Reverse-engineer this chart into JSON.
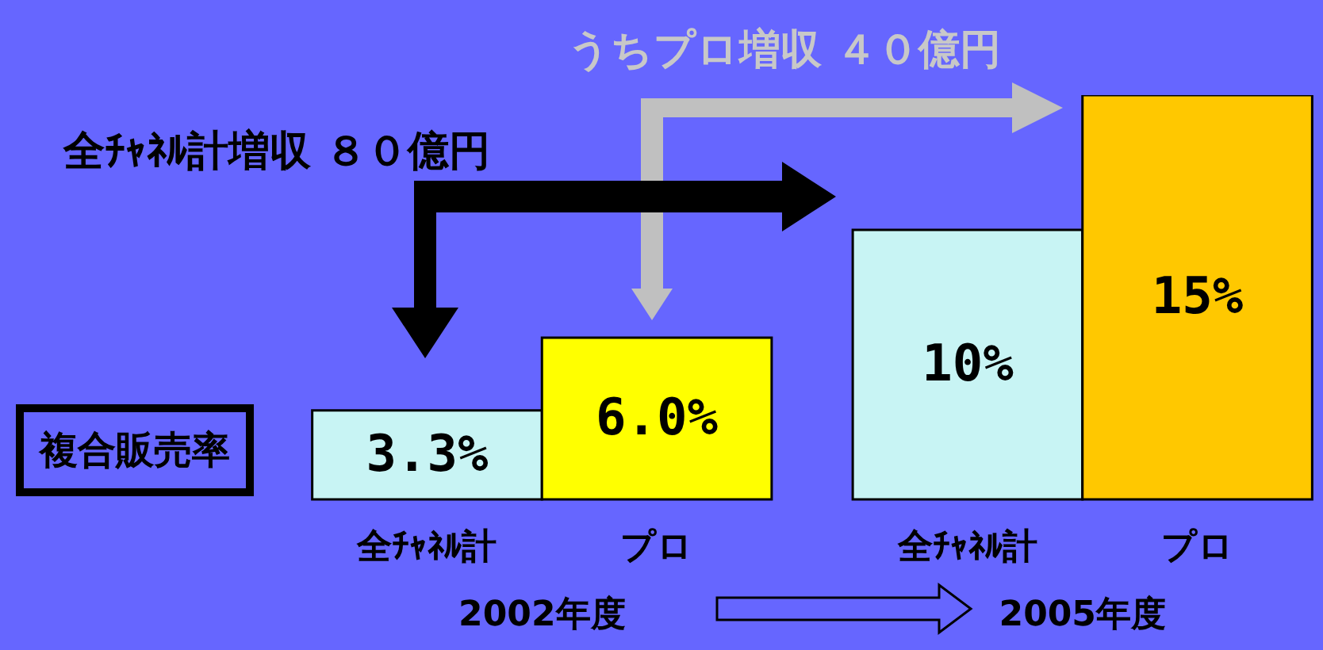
{
  "chart_data": {
    "type": "bar",
    "categories": [
      "2002年度",
      "2005年度"
    ],
    "series": [
      {
        "name": "全ﾁｬﾈﾙ計",
        "colors": [
          "#c8f4f4",
          "#c8f4f4"
        ],
        "values": [
          3.3,
          10
        ],
        "value_labels": [
          "3.3%",
          "10%"
        ]
      },
      {
        "name": "プロ",
        "colors": [
          "#ffff00",
          "#ffc800"
        ],
        "values": [
          6.0,
          15
        ],
        "value_labels": [
          "6.0%",
          "15%"
        ]
      }
    ],
    "ylabel": "複合販売率",
    "annotations": [
      "全ﾁｬﾈﾙ計増収 ８０億円",
      "うちプロ増収 ４０億円"
    ]
  }
}
